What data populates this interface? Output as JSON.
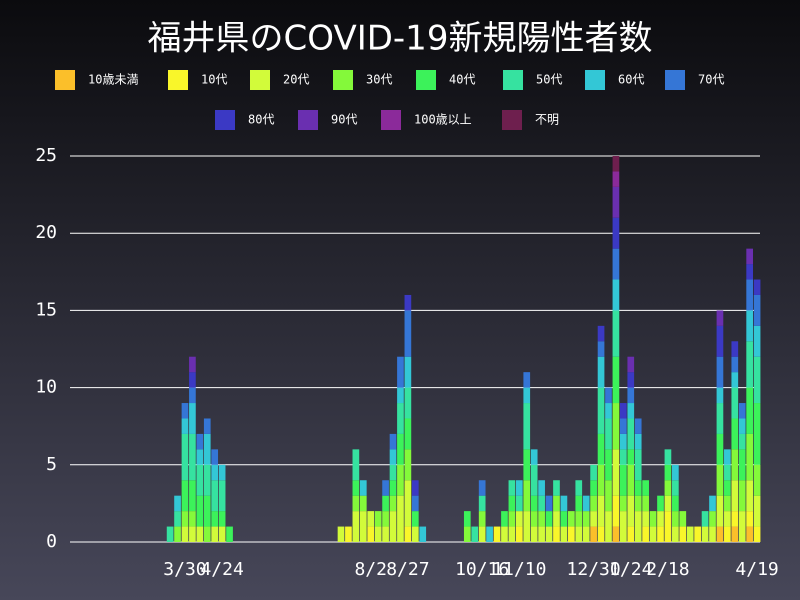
{
  "chart_data": {
    "type": "stacked_bar",
    "title": "福井県のCOVID-19新規陽性者数",
    "categories": [
      null,
      null,
      "3/30",
      null,
      null,
      null,
      null,
      "4/24",
      null,
      null,
      null,
      null,
      null,
      null,
      null,
      null,
      null,
      null,
      null,
      null,
      null,
      null,
      null,
      null,
      null,
      null,
      null,
      "8/2",
      null,
      null,
      null,
      null,
      "8/27",
      null,
      null,
      null,
      null,
      null,
      null,
      null,
      null,
      null,
      "10/16",
      null,
      null,
      null,
      null,
      "11/10",
      null,
      null,
      null,
      null,
      null,
      null,
      null,
      null,
      null,
      "12/30",
      null,
      null,
      null,
      null,
      "1/24",
      null,
      null,
      null,
      null,
      "2/18",
      null,
      null,
      null,
      null,
      null,
      null,
      null,
      null,
      null,
      null,
      null,
      "4/19"
    ],
    "series": [
      {
        "name": "10歳未満",
        "color": "#fbbf2a",
        "values": [
          0,
          0,
          0,
          0,
          0,
          0,
          0,
          0,
          0,
          0,
          0,
          0,
          0,
          0,
          0,
          0,
          0,
          0,
          0,
          0,
          0,
          0,
          0,
          0,
          0,
          0,
          0,
          0,
          0,
          0,
          0,
          0,
          0,
          0,
          0,
          0,
          0,
          0,
          0,
          0,
          0,
          0,
          0,
          0,
          0,
          0,
          0,
          0,
          0,
          0,
          0,
          0,
          0,
          0,
          0,
          0,
          0,
          1,
          0,
          0,
          1,
          0,
          0,
          0,
          0,
          0,
          0,
          0,
          0,
          0,
          0,
          0,
          0,
          0,
          1,
          0,
          1,
          0,
          1,
          0
        ]
      },
      {
        "name": "10代",
        "color": "#f9f62a",
        "values": [
          0,
          0,
          0,
          0,
          0,
          0,
          0,
          0,
          0,
          0,
          0,
          0,
          0,
          0,
          0,
          0,
          0,
          0,
          0,
          0,
          0,
          0,
          0,
          0,
          1,
          0,
          0,
          1,
          0,
          0,
          0,
          0,
          1,
          0,
          0,
          0,
          0,
          0,
          0,
          0,
          0,
          0,
          0,
          0,
          1,
          0,
          0,
          1,
          0,
          0,
          0,
          0,
          1,
          0,
          1,
          0,
          0,
          0,
          1,
          0,
          2,
          0,
          1,
          0,
          1,
          0,
          1,
          2,
          0,
          1,
          0,
          1,
          0,
          0,
          0,
          1,
          1,
          0,
          1,
          1
        ]
      },
      {
        "name": "20代",
        "color": "#d2fb3a",
        "values": [
          0,
          0,
          1,
          1,
          1,
          0,
          1,
          1,
          0,
          0,
          0,
          0,
          0,
          0,
          0,
          0,
          0,
          0,
          0,
          0,
          0,
          0,
          0,
          1,
          0,
          2,
          2,
          1,
          1,
          1,
          2,
          3,
          3,
          1,
          0,
          0,
          0,
          0,
          0,
          0,
          0,
          0,
          1,
          0,
          0,
          1,
          1,
          1,
          2,
          1,
          1,
          1,
          1,
          1,
          0,
          1,
          1,
          1,
          2,
          2,
          3,
          2,
          2,
          2,
          1,
          1,
          1,
          1,
          1,
          0,
          1,
          0,
          1,
          1,
          2,
          1,
          2,
          2,
          2,
          2
        ]
      },
      {
        "name": "30代",
        "color": "#84f93a",
        "values": [
          0,
          1,
          1,
          1,
          0,
          1,
          0,
          0,
          0,
          0,
          0,
          0,
          0,
          0,
          0,
          0,
          0,
          0,
          0,
          0,
          0,
          0,
          0,
          0,
          0,
          1,
          1,
          0,
          1,
          1,
          1,
          2,
          2,
          0,
          0,
          0,
          0,
          0,
          0,
          0,
          1,
          0,
          1,
          0,
          0,
          0,
          1,
          0,
          2,
          1,
          1,
          0,
          1,
          0,
          1,
          1,
          1,
          1,
          2,
          2,
          3,
          1,
          2,
          1,
          1,
          1,
          0,
          1,
          1,
          1,
          0,
          0,
          0,
          1,
          2,
          1,
          2,
          2,
          3,
          2
        ]
      },
      {
        "name": "40代",
        "color": "#3cf25a",
        "values": [
          0,
          0,
          2,
          2,
          2,
          2,
          1,
          1,
          1,
          0,
          0,
          0,
          0,
          0,
          0,
          0,
          0,
          0,
          0,
          0,
          0,
          0,
          0,
          0,
          0,
          1,
          0,
          0,
          0,
          1,
          1,
          2,
          2,
          1,
          0,
          0,
          0,
          0,
          0,
          0,
          1,
          0,
          0,
          0,
          0,
          1,
          1,
          0,
          2,
          1,
          0,
          1,
          0,
          1,
          0,
          1,
          0,
          1,
          2,
          2,
          3,
          2,
          1,
          1,
          1,
          0,
          1,
          1,
          1,
          0,
          0,
          0,
          0,
          0,
          2,
          1,
          2,
          2,
          3,
          4
        ]
      },
      {
        "name": "50代",
        "color": "#36e2a0",
        "values": [
          1,
          1,
          3,
          3,
          2,
          2,
          2,
          2,
          0,
          0,
          0,
          0,
          0,
          0,
          0,
          0,
          0,
          0,
          0,
          0,
          0,
          0,
          0,
          0,
          0,
          2,
          0,
          0,
          0,
          0,
          1,
          2,
          2,
          0,
          0,
          0,
          0,
          0,
          0,
          0,
          0,
          1,
          1,
          0,
          0,
          0,
          1,
          1,
          3,
          2,
          1,
          0,
          1,
          0,
          0,
          1,
          0,
          1,
          3,
          2,
          3,
          1,
          2,
          2,
          0,
          0,
          0,
          1,
          1,
          0,
          0,
          0,
          1,
          0,
          2,
          1,
          2,
          1,
          3,
          3
        ]
      },
      {
        "name": "60代",
        "color": "#33c7d6",
        "values": [
          0,
          1,
          1,
          2,
          1,
          2,
          1,
          1,
          0,
          0,
          0,
          0,
          0,
          0,
          0,
          0,
          0,
          0,
          0,
          0,
          0,
          0,
          0,
          0,
          0,
          0,
          1,
          0,
          0,
          0,
          1,
          1,
          2,
          0,
          1,
          0,
          0,
          0,
          0,
          0,
          0,
          0,
          0,
          1,
          0,
          0,
          0,
          1,
          1,
          1,
          1,
          0,
          0,
          1,
          0,
          0,
          1,
          0,
          2,
          1,
          2,
          1,
          1,
          1,
          0,
          0,
          0,
          0,
          1,
          0,
          0,
          0,
          0,
          1,
          1,
          1,
          1,
          1,
          2,
          2
        ]
      },
      {
        "name": "70代",
        "color": "#3576d6",
        "values": [
          0,
          0,
          1,
          1,
          1,
          1,
          1,
          0,
          0,
          0,
          0,
          0,
          0,
          0,
          0,
          0,
          0,
          0,
          0,
          0,
          0,
          0,
          0,
          0,
          0,
          0,
          0,
          0,
          0,
          1,
          1,
          2,
          3,
          1,
          0,
          0,
          0,
          0,
          0,
          0,
          0,
          0,
          1,
          0,
          0,
          0,
          0,
          0,
          1,
          0,
          0,
          1,
          0,
          0,
          0,
          0,
          0,
          0,
          1,
          1,
          2,
          1,
          1,
          1,
          0,
          0,
          0,
          0,
          0,
          0,
          0,
          0,
          0,
          0,
          2,
          0,
          1,
          1,
          2,
          2
        ]
      },
      {
        "name": "80代",
        "color": "#3b39c4",
        "values": [
          0,
          0,
          0,
          1,
          0,
          0,
          0,
          0,
          0,
          0,
          0,
          0,
          0,
          0,
          0,
          0,
          0,
          0,
          0,
          0,
          0,
          0,
          0,
          0,
          0,
          0,
          0,
          0,
          0,
          0,
          0,
          0,
          1,
          1,
          0,
          0,
          0,
          0,
          0,
          0,
          0,
          0,
          0,
          0,
          0,
          0,
          0,
          0,
          0,
          0,
          0,
          0,
          0,
          0,
          0,
          0,
          0,
          0,
          1,
          0,
          2,
          1,
          1,
          0,
          0,
          0,
          0,
          0,
          0,
          0,
          0,
          0,
          0,
          0,
          2,
          0,
          1,
          0,
          1,
          1
        ]
      },
      {
        "name": "90代",
        "color": "#6a2fb0",
        "values": [
          0,
          0,
          0,
          1,
          0,
          0,
          0,
          0,
          0,
          0,
          0,
          0,
          0,
          0,
          0,
          0,
          0,
          0,
          0,
          0,
          0,
          0,
          0,
          0,
          0,
          0,
          0,
          0,
          0,
          0,
          0,
          0,
          0,
          0,
          0,
          0,
          0,
          0,
          0,
          0,
          0,
          0,
          0,
          0,
          0,
          0,
          0,
          0,
          0,
          0,
          0,
          0,
          0,
          0,
          0,
          0,
          0,
          0,
          0,
          0,
          2,
          0,
          1,
          0,
          0,
          0,
          0,
          0,
          0,
          0,
          0,
          0,
          0,
          0,
          1,
          0,
          0,
          0,
          1,
          0
        ]
      },
      {
        "name": "100歳以上",
        "color": "#8b2a9a",
        "values": [
          0,
          0,
          0,
          0,
          0,
          0,
          0,
          0,
          0,
          0,
          0,
          0,
          0,
          0,
          0,
          0,
          0,
          0,
          0,
          0,
          0,
          0,
          0,
          0,
          0,
          0,
          0,
          0,
          0,
          0,
          0,
          0,
          0,
          0,
          0,
          0,
          0,
          0,
          0,
          0,
          0,
          0,
          0,
          0,
          0,
          0,
          0,
          0,
          0,
          0,
          0,
          0,
          0,
          0,
          0,
          0,
          0,
          0,
          0,
          0,
          1,
          0,
          0,
          0,
          0,
          0,
          0,
          0,
          0,
          0,
          0,
          0,
          0,
          0,
          0,
          0,
          0,
          0,
          0,
          0
        ]
      },
      {
        "name": "不明",
        "color": "#6e1f4e",
        "values": [
          0,
          0,
          0,
          0,
          0,
          0,
          0,
          0,
          0,
          0,
          0,
          0,
          0,
          0,
          0,
          0,
          0,
          0,
          0,
          0,
          0,
          0,
          0,
          0,
          0,
          0,
          0,
          0,
          0,
          0,
          0,
          0,
          0,
          0,
          0,
          0,
          0,
          0,
          0,
          0,
          0,
          0,
          0,
          0,
          0,
          0,
          0,
          0,
          0,
          0,
          0,
          0,
          0,
          0,
          0,
          0,
          0,
          0,
          0,
          0,
          1,
          0,
          0,
          0,
          0,
          0,
          0,
          0,
          0,
          0,
          0,
          0,
          0,
          0,
          0,
          0,
          0,
          0,
          0,
          0
        ]
      }
    ],
    "ylim": [
      0,
      25
    ],
    "yticks": [
      0,
      5,
      10,
      15,
      20,
      25
    ],
    "grid": true
  }
}
